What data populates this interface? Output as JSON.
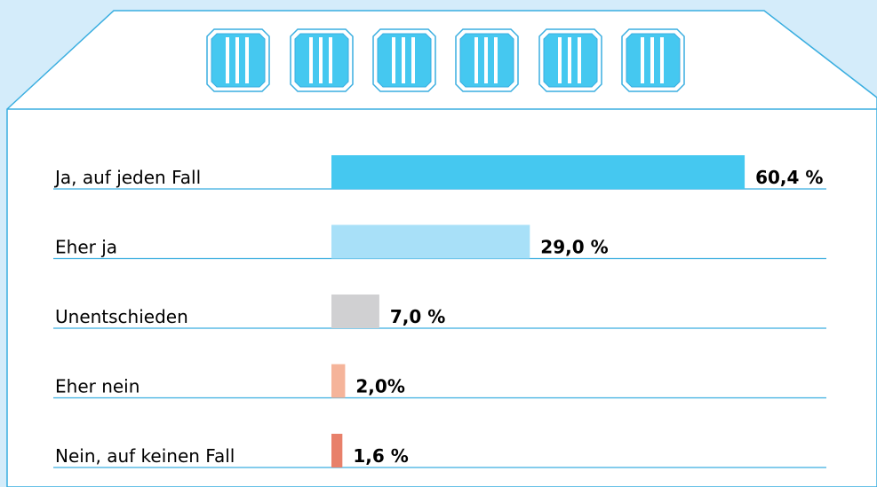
{
  "chart_data": {
    "type": "bar",
    "orientation": "horizontal",
    "categories": [
      "Ja, auf jeden Fall",
      "Eher ja",
      "Unentschieden",
      "Eher nein",
      "Nein, auf keinen Fall"
    ],
    "values": [
      60.4,
      29.0,
      7.0,
      2.0,
      1.6
    ],
    "value_labels": [
      "60,4 %",
      "29,0 %",
      "7,0 %",
      "2,0%",
      "1,6 %"
    ],
    "colors": [
      "#45c8f0",
      "#a8e0f8",
      "#d0d0d2",
      "#f5b49a",
      "#e8806a"
    ]
  }
}
